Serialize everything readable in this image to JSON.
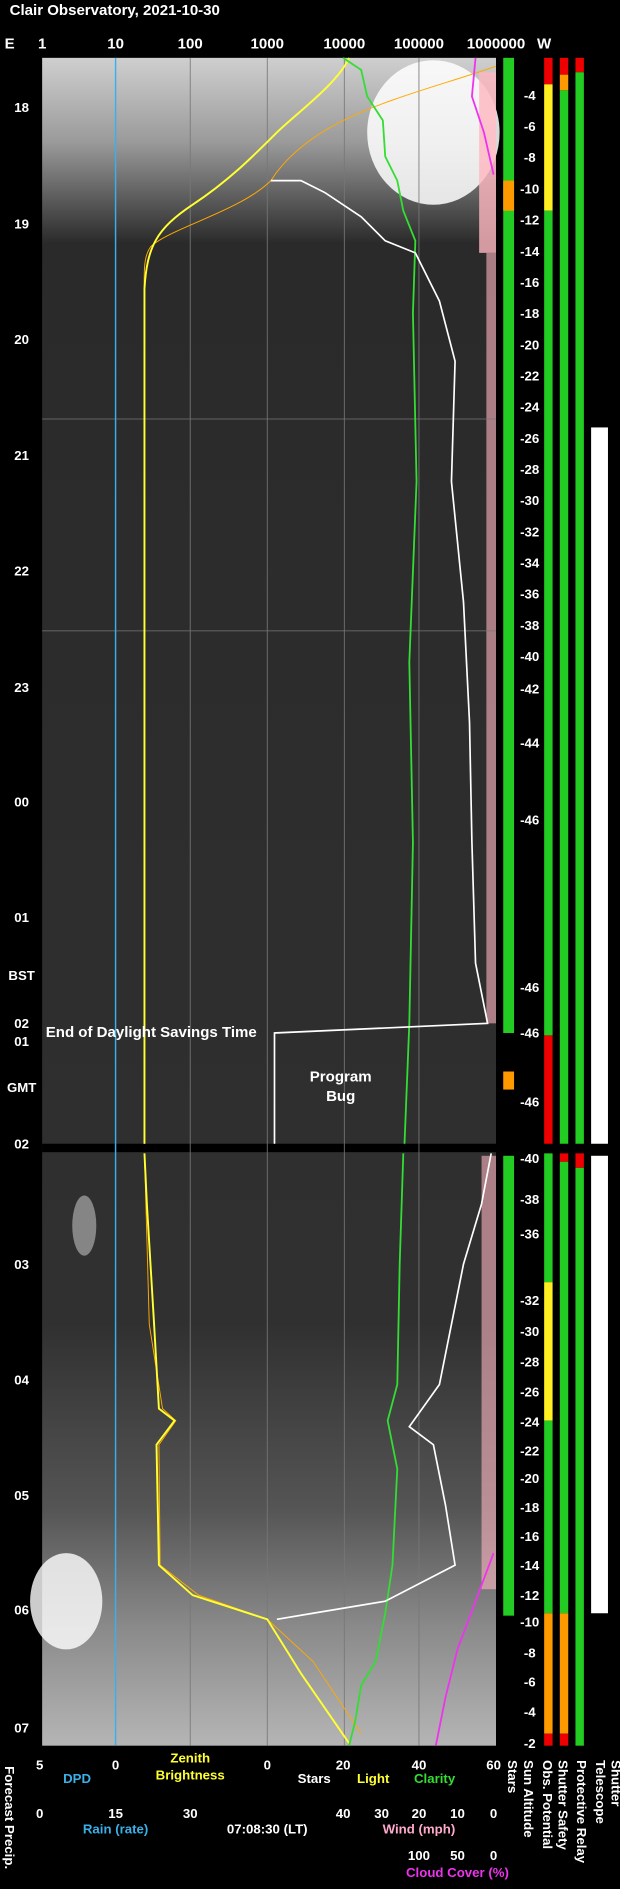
{
  "header": {
    "title": "Clair Observatory, 2021-10-30",
    "left": "E",
    "right": "W"
  },
  "top_scale": [
    1,
    10,
    100,
    1000,
    10000,
    100000,
    1000000
  ],
  "time_labels": [
    "18",
    "19",
    "20",
    "21",
    "22",
    "23",
    "00",
    "01",
    "BST",
    "02",
    "01",
    "GMT",
    "02",
    "03",
    "04",
    "05",
    "06",
    "07"
  ],
  "sun_altitude": [
    -4,
    -6,
    -8,
    -10,
    -12,
    -14,
    -16,
    -18,
    -20,
    -22,
    -24,
    -26,
    -28,
    -30,
    -32,
    -34,
    -36,
    -38,
    -40,
    -42,
    -44,
    -46,
    -46,
    -46,
    -46,
    -40,
    -38,
    -36,
    -32,
    -30,
    -28,
    -26,
    -24,
    -22,
    -20,
    -18,
    -16,
    -14,
    -12,
    -10,
    -8,
    -6,
    -4,
    -2
  ],
  "annotations": {
    "dst": "End of Daylight Savings Time",
    "bug": [
      "Program",
      "Bug"
    ]
  },
  "bottom": {
    "row1_ticks": [
      5,
      0,
      0,
      20,
      40,
      60
    ],
    "dpd": "DPD",
    "zenith": [
      "Zenith",
      "Brightness"
    ],
    "stars": "Stars",
    "light": "Light",
    "clarity": "Clarity",
    "row2_ticks": [
      0,
      15,
      30,
      40,
      30,
      20,
      10,
      0
    ],
    "rain": "Rain (rate)",
    "time": "07:08:30 (LT)",
    "wind": "Wind (mph)",
    "row3_ticks": [
      100,
      50,
      0
    ],
    "cloud": "Cloud Cover (%)"
  },
  "side_labels": {
    "forecast": "Forecast Precip.",
    "stars": "Stars",
    "sun": "Sun Altitude",
    "obs": "Obs. Potential",
    "shutter_safety": "Shutter Safety",
    "relay": "Protective Relay",
    "telescope": [
      "Telescope",
      "Shutter"
    ]
  }
}
